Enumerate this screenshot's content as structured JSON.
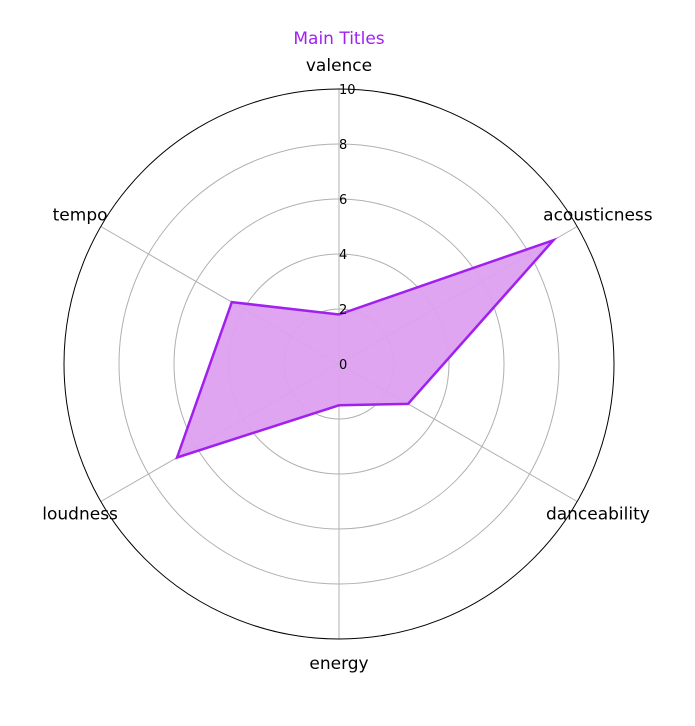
{
  "chart_data": {
    "type": "radar",
    "title": "Main Titles",
    "categories": [
      "valence",
      "acousticness",
      "danceability",
      "energy",
      "loudness",
      "tempo"
    ],
    "series": [
      {
        "name": "Main Titles",
        "values": [
          1.8,
          9.0,
          2.9,
          1.5,
          6.8,
          4.5
        ]
      }
    ],
    "rlim": [
      0,
      10
    ],
    "rticks": [
      "0",
      "2",
      "4",
      "6",
      "8",
      "10"
    ],
    "grid": true,
    "colors": {
      "series": "#a020f0",
      "fill": "#dda0f0",
      "grid": "#b0b0b0",
      "frame": "#000000",
      "title": "#a020f0"
    }
  }
}
